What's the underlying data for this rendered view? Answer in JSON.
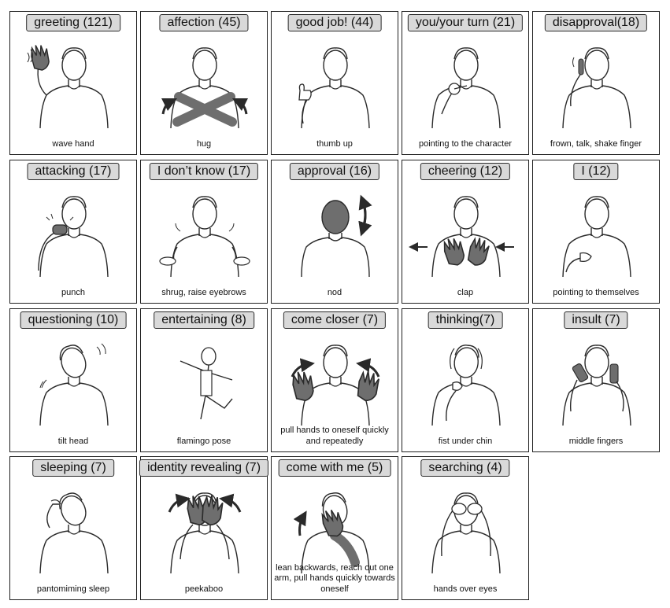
{
  "gestures": [
    {
      "label": "greeting (121)",
      "caption": "wave hand",
      "pose": "wave"
    },
    {
      "label": "affection (45)",
      "caption": "hug",
      "pose": "hug"
    },
    {
      "label": "good job! (44)",
      "caption": "thumb up",
      "pose": "thumb"
    },
    {
      "label": "you/your turn (21)",
      "caption": "pointing to the character",
      "pose": "point"
    },
    {
      "label": "disapproval(18)",
      "caption": "frown, talk, shake finger",
      "pose": "finger"
    },
    {
      "label": "attacking (17)",
      "caption": "punch",
      "pose": "punch"
    },
    {
      "label": "I don’t know (17)",
      "caption": "shrug, raise eyebrows",
      "pose": "shrug"
    },
    {
      "label": "approval (16)",
      "caption": "nod",
      "pose": "nod"
    },
    {
      "label": "cheering (12)",
      "caption": "clap",
      "pose": "clap"
    },
    {
      "label": "I (12)",
      "caption": "pointing to themselves",
      "pose": "self"
    },
    {
      "label": "questioning (10)",
      "caption": "tilt head",
      "pose": "tilt"
    },
    {
      "label": "entertaining (8)",
      "caption": "flamingo pose",
      "pose": "flamingo"
    },
    {
      "label": "come closer (7)",
      "caption": "pull hands to oneself quickly and repeatedly",
      "pose": "closer"
    },
    {
      "label": "thinking(7)",
      "caption": "fist under chin",
      "pose": "think"
    },
    {
      "label": "insult (7)",
      "caption": "middle fingers",
      "pose": "insult"
    },
    {
      "label": "sleeping (7)",
      "caption": "pantomiming sleep",
      "pose": "sleep"
    },
    {
      "label": "identity revealing (7)",
      "caption": "peekaboo",
      "pose": "peek"
    },
    {
      "label": "come with me (5)",
      "caption": "lean backwards, reach out one arm, pull hands quickly towards oneself",
      "pose": "comewith"
    },
    {
      "label": "searching (4)",
      "caption": "hands over eyes",
      "pose": "search"
    }
  ],
  "colors": {
    "highlight": "#6e6e6e",
    "stroke": "#2a2a2a",
    "label_fill": "#d9d9d9"
  }
}
